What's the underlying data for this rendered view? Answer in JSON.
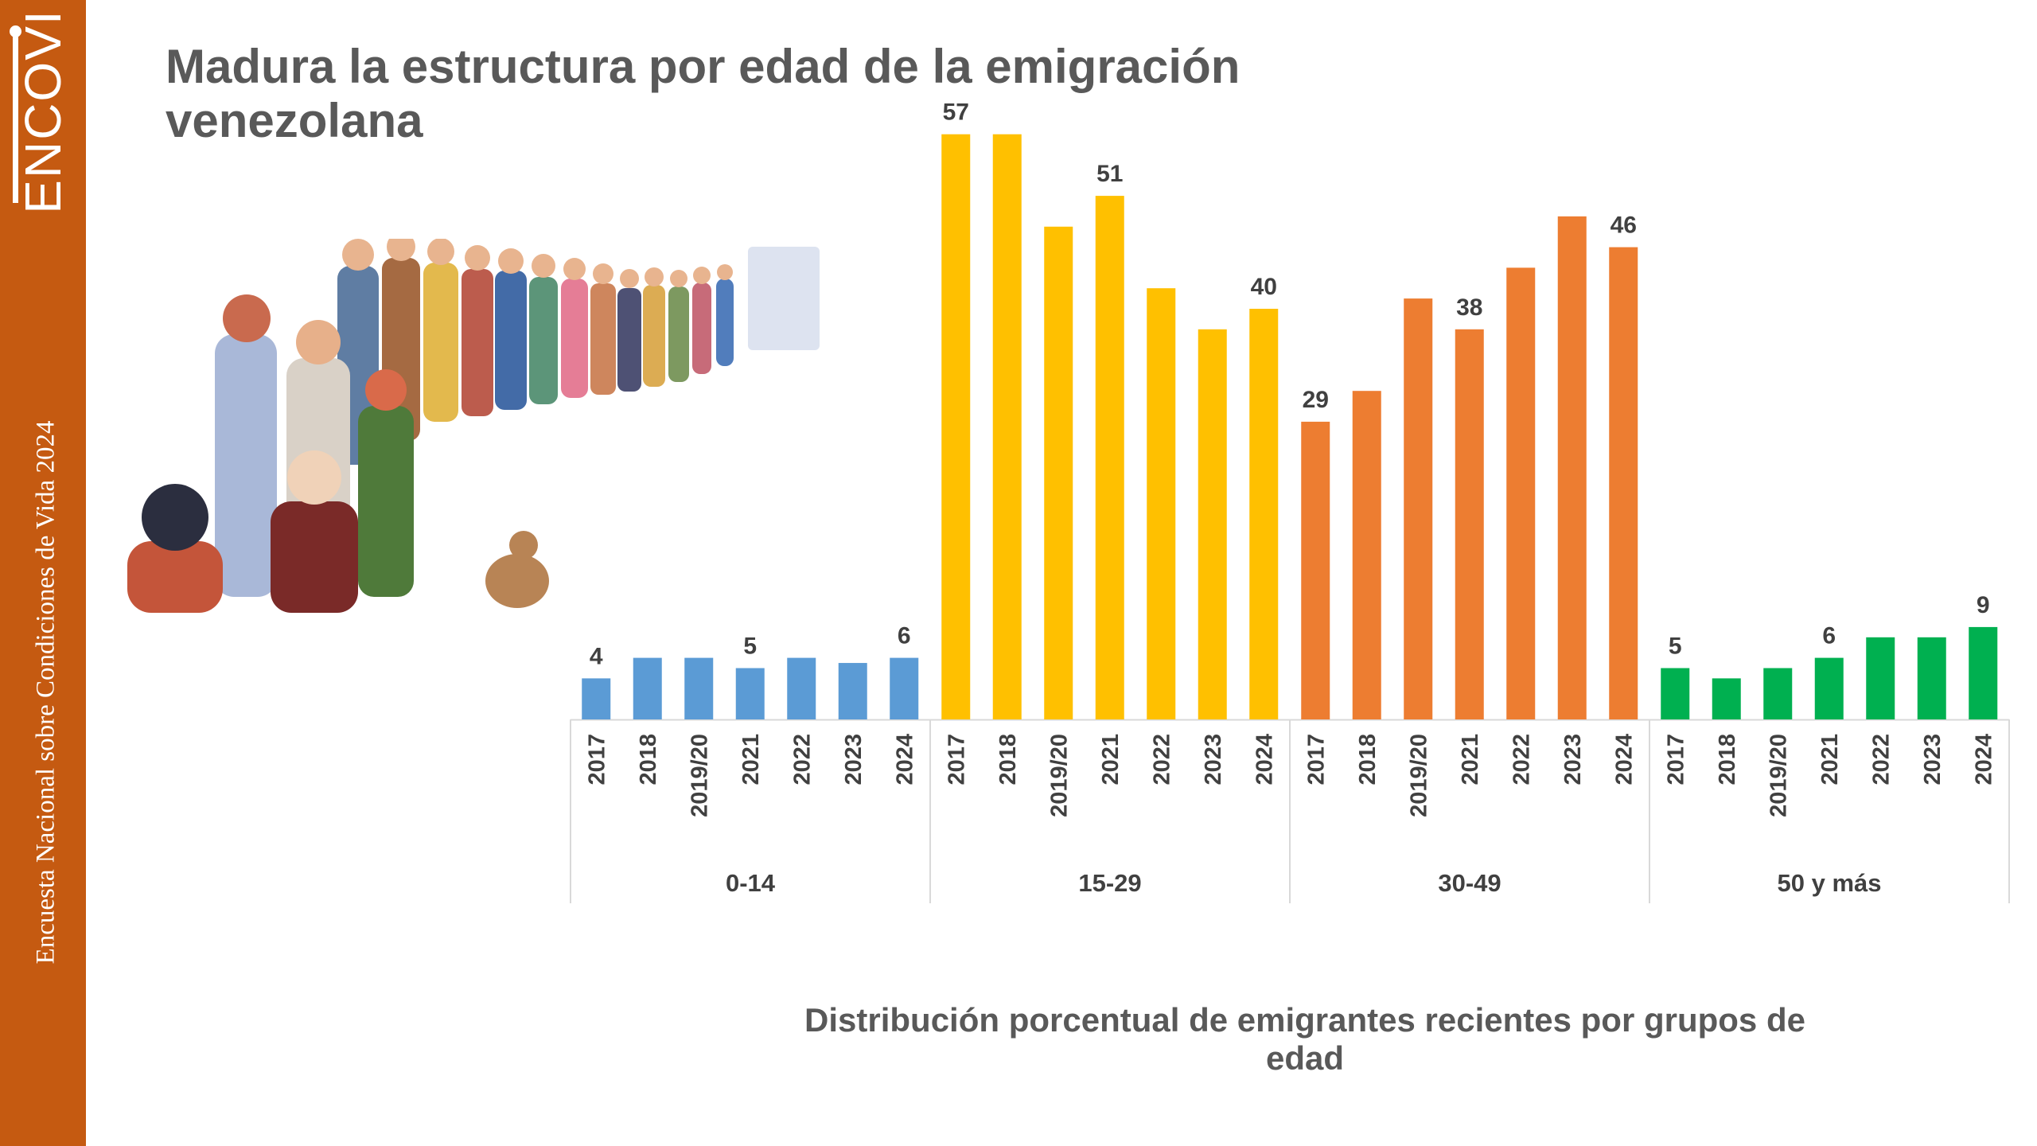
{
  "sidebar": {
    "logo_text": "ENCOVI",
    "vertical_text": "Encuesta Nacional sobre Condiciones de Vida 2024",
    "color": "#c55a11"
  },
  "header": {
    "title": "Madura la estructura por edad de la emigración venezolana"
  },
  "illustration": {
    "icon": "crowd-queue-illustration"
  },
  "chart_data": {
    "type": "bar",
    "title": "Distribución porcentual de emigrantes recientes por grupos de edad",
    "xlabel": "",
    "ylabel": "",
    "ylim": [
      0,
      60
    ],
    "grid": false,
    "categories": [
      "2017",
      "2018",
      "2019/20",
      "2021",
      "2022",
      "2023",
      "2024"
    ],
    "groups": [
      {
        "name": "0-14",
        "color": "#5b9bd5",
        "values": [
          4,
          6,
          6,
          5,
          6,
          5.5,
          6
        ],
        "labels": [
          "4",
          "",
          "",
          "5",
          "",
          "",
          "6"
        ]
      },
      {
        "name": "15-29",
        "color": "#ffc000",
        "values": [
          57,
          57,
          48,
          51,
          42,
          38,
          40
        ],
        "labels": [
          "57",
          "",
          "",
          "51",
          "",
          "",
          "40"
        ]
      },
      {
        "name": "30-49",
        "color": "#ed7d31",
        "values": [
          29,
          32,
          41,
          38,
          44,
          49,
          46
        ],
        "labels": [
          "29",
          "",
          "",
          "38",
          "",
          "",
          "46"
        ]
      },
      {
        "name": "50 y más",
        "color": "#00b050",
        "values": [
          5,
          4,
          5,
          6,
          8,
          8,
          9
        ],
        "labels": [
          "5",
          "",
          "",
          "6",
          "",
          "",
          "9"
        ]
      }
    ]
  }
}
